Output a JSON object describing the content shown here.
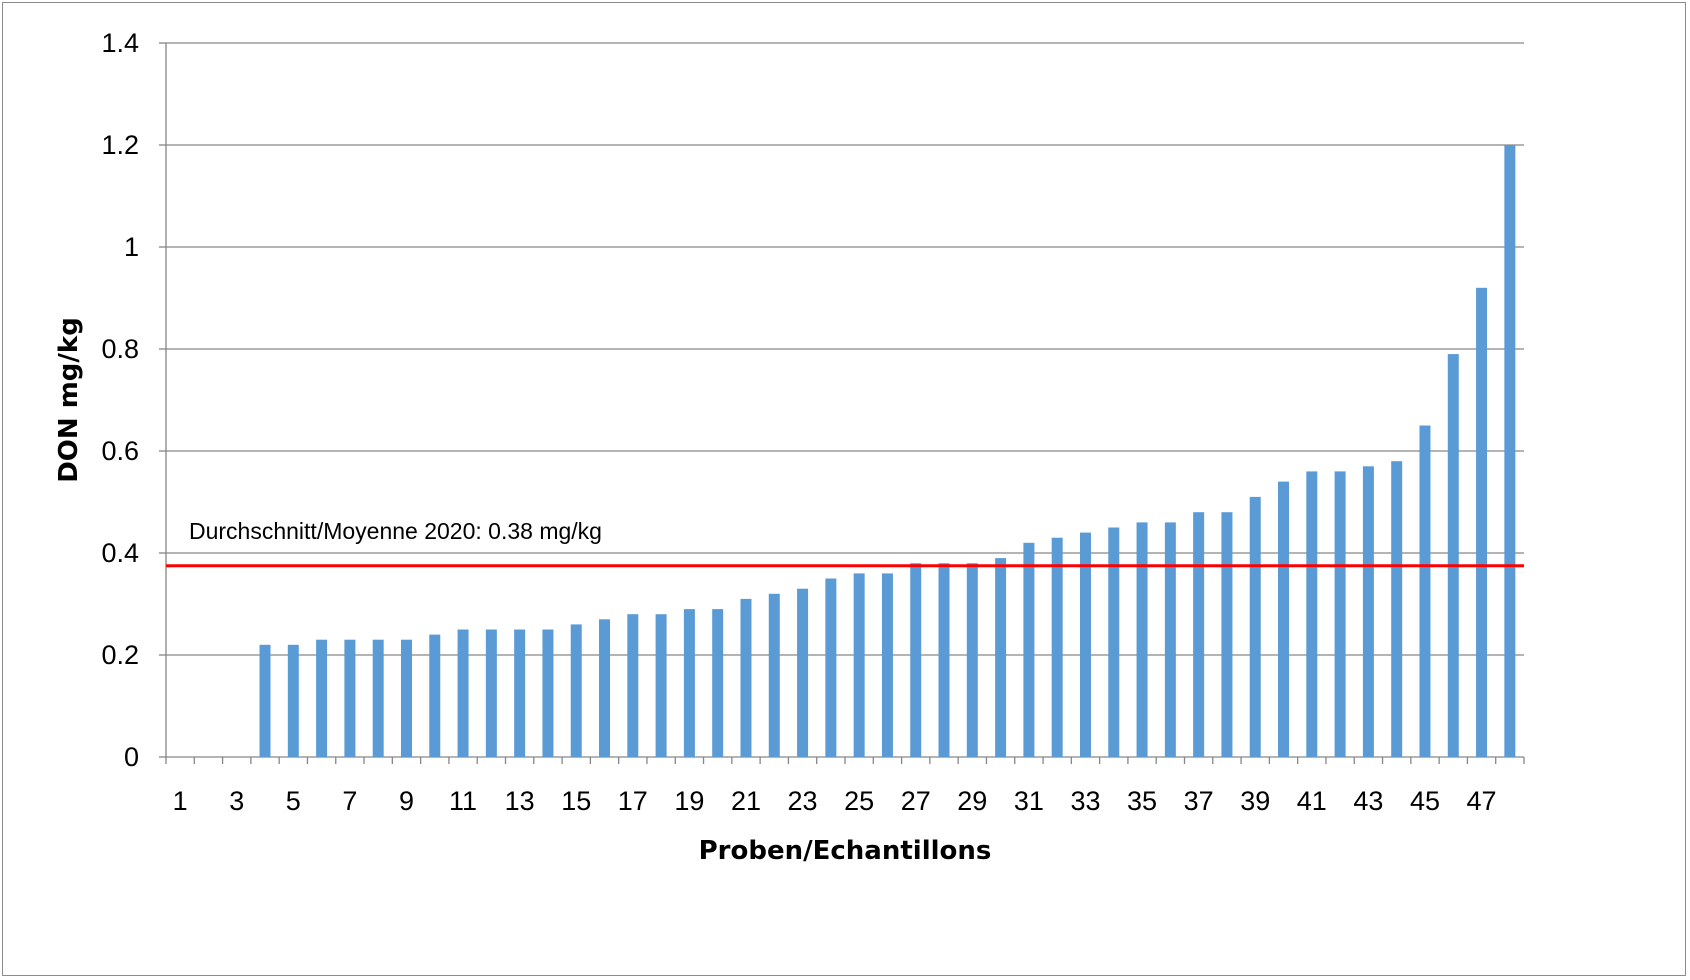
{
  "chart_data": {
    "type": "bar",
    "title": "",
    "xlabel": "Proben/Echantillons",
    "ylabel": "DON mg/kg",
    "ylim": [
      0,
      1.4
    ],
    "yticks": [
      "0",
      "0.2",
      "0.4",
      "0.6",
      "0.8",
      "1",
      "1.2",
      "1.4"
    ],
    "grid": true,
    "legend": "none",
    "categories": [
      "1",
      "2",
      "3",
      "4",
      "5",
      "6",
      "7",
      "8",
      "9",
      "10",
      "11",
      "12",
      "13",
      "14",
      "15",
      "16",
      "17",
      "18",
      "19",
      "20",
      "21",
      "22",
      "23",
      "24",
      "25",
      "26",
      "27",
      "28",
      "29",
      "30",
      "31",
      "32",
      "33",
      "34",
      "35",
      "36",
      "37",
      "38",
      "39",
      "40",
      "41",
      "42",
      "43",
      "44",
      "45",
      "46",
      "47",
      "48"
    ],
    "xtick_labels": [
      "1",
      "3",
      "5",
      "7",
      "9",
      "11",
      "13",
      "15",
      "17",
      "19",
      "21",
      "23",
      "25",
      "27",
      "29",
      "31",
      "33",
      "35",
      "37",
      "39",
      "41",
      "43",
      "45",
      "47"
    ],
    "values": [
      0,
      0,
      0,
      0.22,
      0.22,
      0.23,
      0.23,
      0.23,
      0.23,
      0.24,
      0.25,
      0.25,
      0.25,
      0.25,
      0.26,
      0.27,
      0.28,
      0.28,
      0.29,
      0.29,
      0.31,
      0.32,
      0.33,
      0.35,
      0.36,
      0.36,
      0.38,
      0.38,
      0.38,
      0.39,
      0.42,
      0.43,
      0.44,
      0.45,
      0.46,
      0.46,
      0.48,
      0.48,
      0.51,
      0.54,
      0.56,
      0.56,
      0.57,
      0.58,
      0.65,
      0.79,
      0.92,
      1.2
    ],
    "bar_color": "#5b9bd5",
    "reference_line": {
      "value": 0.375,
      "color": "#ff0000",
      "label": "Durchschnitt/Moyenne 2020: 0.38 mg/kg"
    }
  }
}
